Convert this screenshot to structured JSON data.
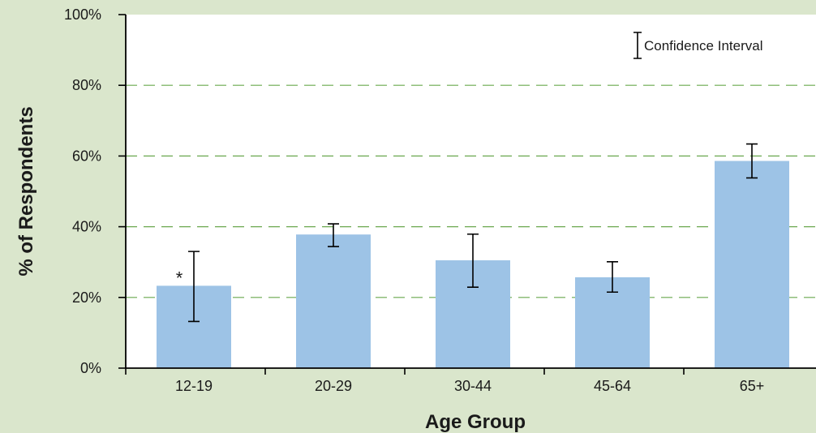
{
  "chart_data": {
    "type": "bar",
    "title": "",
    "xlabel": "Age Group",
    "ylabel": "% of Respondents",
    "categories": [
      "12-19",
      "20-29",
      "30-44",
      "45-64",
      "65+"
    ],
    "values": [
      23.3,
      37.8,
      30.5,
      25.7,
      58.6
    ],
    "error_bars": {
      "lower": [
        13.2,
        34.4,
        22.9,
        21.5,
        53.8
      ],
      "upper": [
        33.0,
        40.8,
        37.9,
        30.1,
        63.4
      ]
    },
    "ylim": [
      0,
      100
    ],
    "yticks": [
      0,
      20,
      40,
      60,
      80,
      100
    ],
    "ytick_labels": [
      "0%",
      "20%",
      "40%",
      "60%",
      "80%",
      "100%"
    ],
    "grid": "horizontal-dashed",
    "legend": {
      "label": "Confidence Interval",
      "placement": "top-right"
    },
    "annotations": [
      {
        "category": "12-19",
        "text": "*"
      }
    ],
    "colors": {
      "background": "#dae6cc",
      "plot_area": "#ffffff",
      "bar": "#9dc3e6",
      "grid": "#6aa84f",
      "axis": "#000000"
    }
  }
}
